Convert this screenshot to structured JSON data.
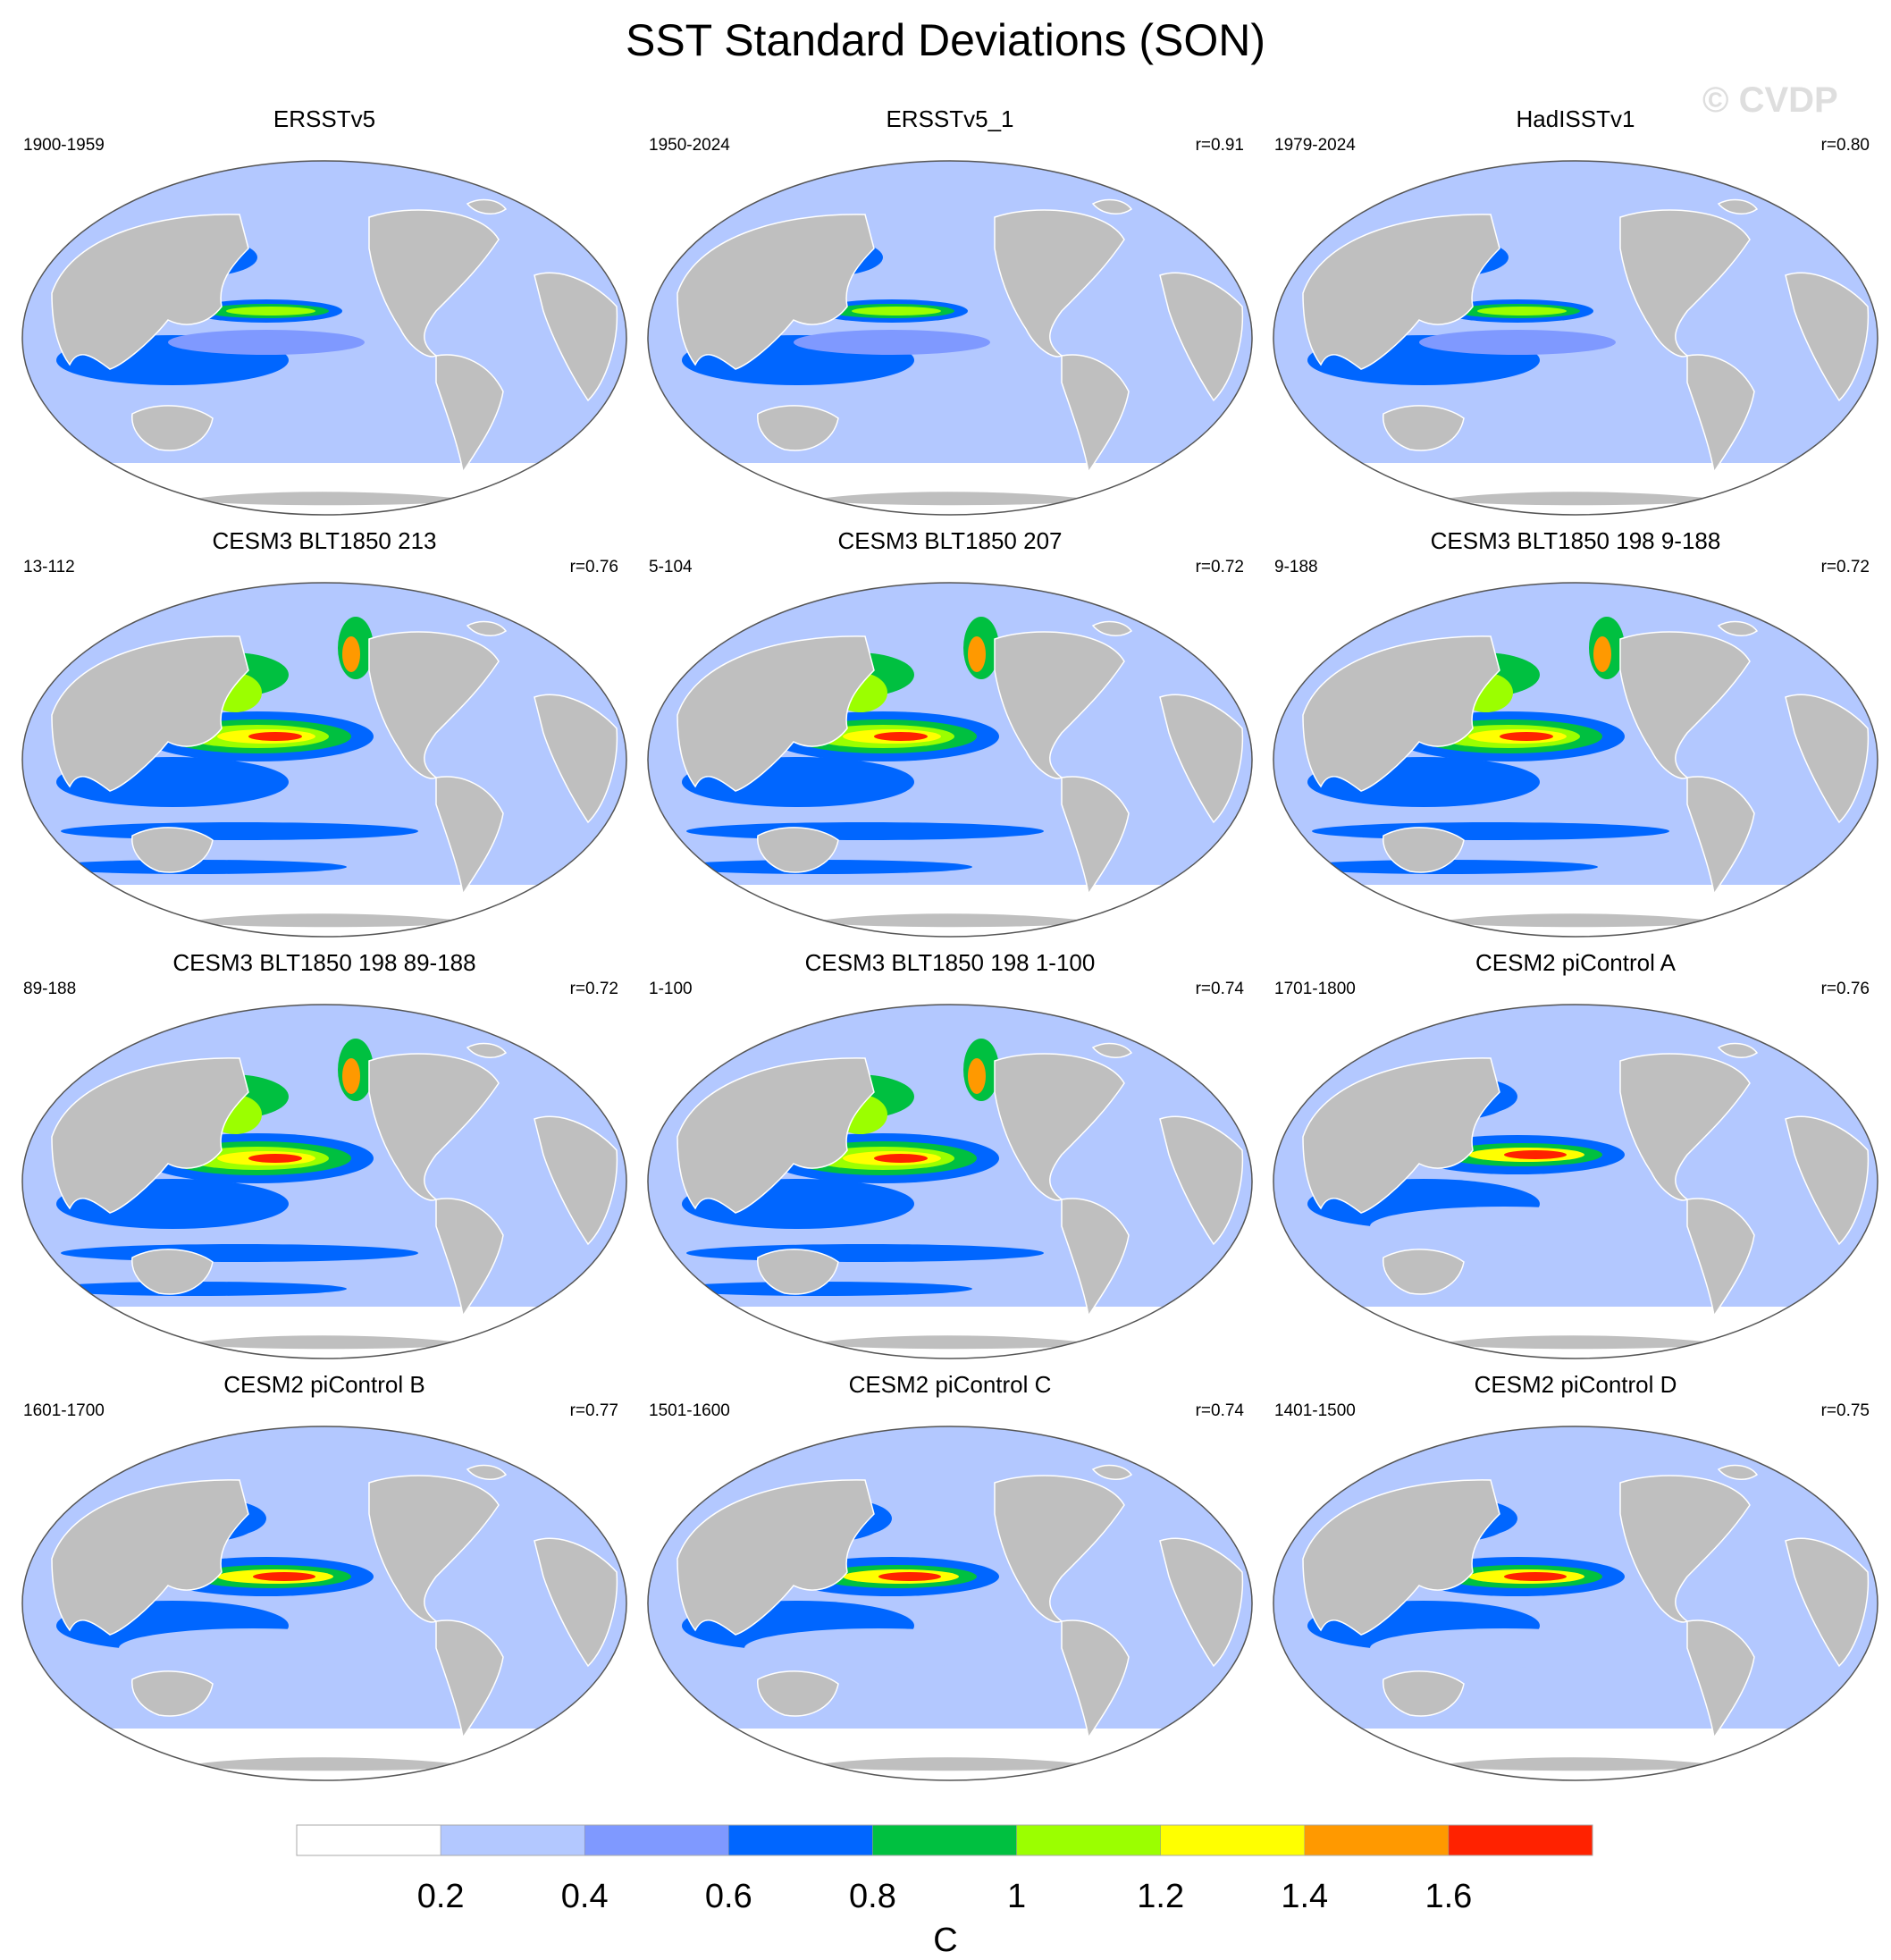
{
  "title": "SST Standard Deviations (SON)",
  "watermark": "© CVDP",
  "colorbar": {
    "unit": "C",
    "ticks": [
      "0.2",
      "0.4",
      "0.6",
      "0.8",
      "1",
      "1.2",
      "1.4",
      "1.6"
    ],
    "colors": [
      "#ffffff",
      "#b3c8ff",
      "#7f99ff",
      "#0066ff",
      "#00c040",
      "#9bff00",
      "#ffff00",
      "#ff9900",
      "#ff2200"
    ]
  },
  "colors": {
    "land": "#bfbfbf",
    "ocean_background": "#b3c8ff",
    "outline": "#555555"
  },
  "panels": [
    {
      "title": "ERSSTv5",
      "period": "1900-1959",
      "corr": ""
    },
    {
      "title": "ERSSTv5_1",
      "period": "1950-2024",
      "corr": "r=0.91"
    },
    {
      "title": "HadISSTv1",
      "period": "1979-2024",
      "corr": "r=0.80"
    },
    {
      "title": "CESM3 BLT1850 213",
      "period": "13-112",
      "corr": "r=0.76"
    },
    {
      "title": "CESM3 BLT1850 207",
      "period": "5-104",
      "corr": "r=0.72"
    },
    {
      "title": "CESM3 BLT1850 198 9-188",
      "period": "9-188",
      "corr": "r=0.72"
    },
    {
      "title": "CESM3 BLT1850 198 89-188",
      "period": "89-188",
      "corr": "r=0.72"
    },
    {
      "title": "CESM3 BLT1850 198 1-100",
      "period": "1-100",
      "corr": "r=0.74"
    },
    {
      "title": "CESM2 piControl A",
      "period": "1701-1800",
      "corr": "r=0.76"
    },
    {
      "title": "CESM2 piControl B",
      "period": "1601-1700",
      "corr": "r=0.77"
    },
    {
      "title": "CESM2 piControl C",
      "period": "1501-1600",
      "corr": "r=0.74"
    },
    {
      "title": "CESM2 piControl D",
      "period": "1401-1500",
      "corr": "r=0.75"
    }
  ]
}
